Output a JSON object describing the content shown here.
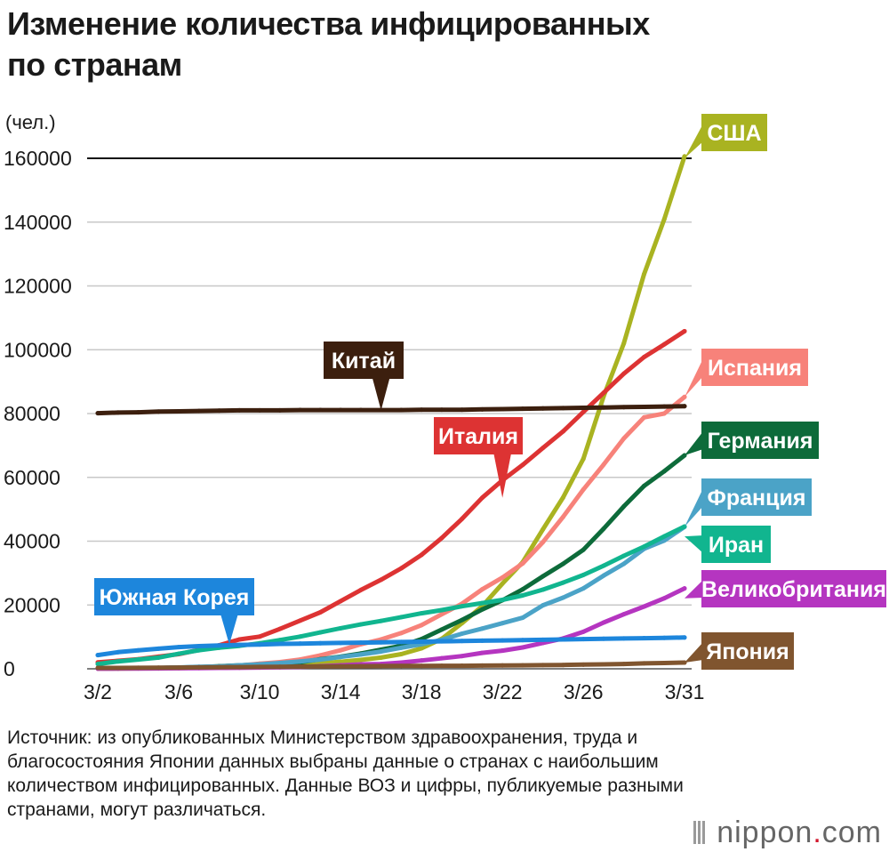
{
  "title": {
    "line1": "Изменение количества инфицированных",
    "line2": "по странам"
  },
  "source_text": "Источник: из опубликованных Министерством здравоохранения, труда и благосостояния Японии данных выбраны данные о странах с наибольшим количеством инфицированных. Данные ВОЗ и цифры, публикуемые разными странами, могут различаться.",
  "brand": {
    "name": "nippon",
    "dot": ".",
    "suffix": "com"
  },
  "chart_data": {
    "type": "line",
    "title": "Изменение количества инфицированных по странам",
    "ylabel": "(чел.)",
    "xlabel": "",
    "x": [
      2,
      3,
      4,
      5,
      6,
      7,
      8,
      9,
      10,
      11,
      12,
      13,
      14,
      15,
      16,
      17,
      18,
      19,
      20,
      21,
      22,
      23,
      24,
      25,
      26,
      27,
      28,
      29,
      30,
      31
    ],
    "x_unit": "day of March",
    "xlim": [
      2,
      31
    ],
    "x_ticks": [
      2,
      6,
      10,
      14,
      18,
      22,
      26,
      31
    ],
    "x_tick_labels": [
      "3/2",
      "3/6",
      "3/10",
      "3/14",
      "3/18",
      "3/22",
      "3/26",
      "3/31"
    ],
    "ylim": [
      0,
      160000
    ],
    "y_ticks": [
      0,
      20000,
      40000,
      60000,
      80000,
      100000,
      120000,
      140000,
      160000
    ],
    "y_tick_labels": [
      "0",
      "20000",
      "40000",
      "60000",
      "80000",
      "100000",
      "120000",
      "140000",
      "160000"
    ],
    "grid": true,
    "series": [
      {
        "name": "США",
        "color": "#a9b321",
        "label_anchor_day": 31,
        "label_anchor_value": 160000,
        "values": [
          60,
          90,
          130,
          160,
          220,
          330,
          420,
          560,
          700,
          1000,
          1300,
          1700,
          2200,
          2800,
          3500,
          4600,
          6400,
          9400,
          14300,
          19600,
          26700,
          33400,
          43700,
          53700,
          65800,
          85400,
          102000,
          123700,
          140900,
          160600
        ]
      },
      {
        "name": "Италия",
        "color": "#dd3333",
        "label_anchor_day": 22,
        "label_anchor_value": 53600,
        "values": [
          2000,
          2500,
          3000,
          3800,
          4600,
          5900,
          7400,
          9200,
          10100,
          12500,
          15100,
          17700,
          21200,
          24700,
          27900,
          31500,
          35700,
          41000,
          47000,
          53600,
          59100,
          63900,
          69200,
          74400,
          80500,
          86500,
          92500,
          97700,
          101700,
          105800
        ]
      },
      {
        "name": "Испания",
        "color": "#f7827a",
        "label_anchor_day": 31,
        "label_anchor_value": 85200,
        "values": [
          110,
          150,
          200,
          260,
          400,
          500,
          670,
          1000,
          1600,
          2100,
          2900,
          4200,
          5800,
          7700,
          9200,
          11200,
          13700,
          17100,
          20400,
          24900,
          28600,
          33000,
          39700,
          47600,
          56200,
          64000,
          72200,
          78800,
          80000,
          85200
        ]
      },
      {
        "name": "Германия",
        "color": "#0d6b3a",
        "label_anchor_day": 31,
        "label_anchor_value": 66900,
        "values": [
          130,
          160,
          200,
          260,
          400,
          530,
          800,
          1100,
          1300,
          1600,
          2000,
          3000,
          3800,
          4800,
          6000,
          7200,
          9300,
          12300,
          15300,
          18600,
          21500,
          24900,
          29000,
          32900,
          37300,
          43900,
          50900,
          57300,
          61900,
          66900
        ]
      },
      {
        "name": "Франция",
        "color": "#4ba3c7",
        "label_anchor_day": 31,
        "label_anchor_value": 44500,
        "values": [
          130,
          190,
          210,
          290,
          420,
          610,
          720,
          1100,
          1400,
          1800,
          2300,
          2900,
          3700,
          4500,
          5400,
          6600,
          7700,
          9100,
          11000,
          12600,
          14300,
          16000,
          19900,
          22300,
          25200,
          29200,
          32900,
          37600,
          40200,
          44500
        ]
      },
      {
        "name": "Иран",
        "color": "#11b58f",
        "label_anchor_day": 31,
        "label_anchor_value": 41500,
        "values": [
          1500,
          2300,
          2900,
          3500,
          4700,
          5800,
          6600,
          7200,
          8000,
          9000,
          10100,
          11400,
          12700,
          13900,
          15000,
          16200,
          17400,
          18400,
          19600,
          20600,
          21600,
          23000,
          24800,
          27000,
          29400,
          32300,
          35400,
          38300,
          41500,
          44600
        ]
      },
      {
        "name": "Великобритания",
        "color": "#b535c0",
        "label_anchor_day": 31,
        "label_anchor_value": 22100,
        "values": [
          40,
          50,
          90,
          120,
          160,
          210,
          280,
          320,
          380,
          460,
          590,
          800,
          1100,
          1400,
          1500,
          1950,
          2600,
          3300,
          3980,
          5000,
          5700,
          6700,
          8100,
          9500,
          11600,
          14500,
          17100,
          19500,
          22100,
          25200
        ]
      },
      {
        "name": "Япония",
        "color": "#80552f",
        "label_anchor_day": 31,
        "label_anchor_value": 1950,
        "values": [
          270,
          290,
          310,
          350,
          400,
          440,
          500,
          530,
          580,
          620,
          690,
          720,
          780,
          820,
          860,
          880,
          910,
          940,
          960,
          1010,
          1050,
          1090,
          1140,
          1190,
          1300,
          1380,
          1500,
          1700,
          1800,
          1950
        ]
      },
      {
        "name": "Южная Корея",
        "color": "#1d86dc",
        "label_anchor_day": 8.5,
        "label_anchor_value": 7600,
        "values": [
          4300,
          5200,
          5800,
          6300,
          6800,
          7100,
          7300,
          7500,
          7600,
          7800,
          7900,
          8000,
          8100,
          8200,
          8300,
          8400,
          8500,
          8600,
          8700,
          8800,
          8900,
          9000,
          9100,
          9200,
          9300,
          9400,
          9500,
          9600,
          9700,
          9800
        ]
      },
      {
        "name": "Китай",
        "color": "#3c1f0e",
        "label_anchor_day": 16,
        "label_anchor_value": 81000,
        "values": [
          80100,
          80300,
          80400,
          80600,
          80700,
          80800,
          80900,
          81000,
          81000,
          81000,
          81100,
          81100,
          81100,
          81100,
          81100,
          81100,
          81200,
          81200,
          81200,
          81300,
          81400,
          81500,
          81600,
          81700,
          81800,
          81900,
          82000,
          82100,
          82200,
          82300
        ]
      }
    ]
  }
}
